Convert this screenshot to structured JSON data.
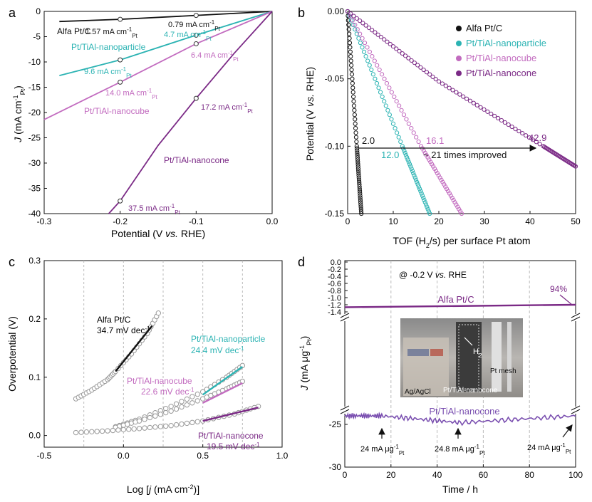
{
  "colors": {
    "pt": "#111111",
    "particle": "#2bb3b3",
    "cube": "#c26bbf",
    "cone": "#7b2a86",
    "cone_d": "#7a4fb0",
    "grid": "#bbbbbb",
    "marker": "#999999"
  },
  "panels": {
    "a": "a",
    "b": "b",
    "c": "c",
    "d": "d"
  },
  "chart_data": [
    {
      "type": "line",
      "panel": "a",
      "xlabel": "Potential (V vs. RHE)",
      "ylabel": "J (mA cm-1Pt)",
      "xlim": [
        -0.3,
        0.0
      ],
      "ylim": [
        -40,
        0
      ],
      "xticks": [
        "-0.3",
        "-0.2",
        "-0.1",
        "0.0"
      ],
      "yticks": [
        "0",
        "-5",
        "-10",
        "-15",
        "-20",
        "-25",
        "-30",
        "-35",
        "-40"
      ],
      "series": [
        {
          "name": "Alfa Pt/C",
          "color": "pt",
          "x": [
            -0.28,
            -0.2,
            -0.1,
            0.0
          ],
          "y": [
            -2.0,
            -1.57,
            -0.79,
            0
          ]
        },
        {
          "name": "Pt/TiAl-nanoparticle",
          "color": "particle",
          "x": [
            -0.28,
            -0.2,
            -0.1,
            0.0
          ],
          "y": [
            -12.7,
            -9.6,
            -4.7,
            0
          ]
        },
        {
          "name": "Pt/TiAl-nanocube",
          "color": "cube",
          "x": [
            -0.3,
            -0.2,
            -0.1,
            0.0
          ],
          "y": [
            -21.4,
            -14.0,
            -6.4,
            0
          ]
        },
        {
          "name": "Pt/TiAl-nanocone",
          "color": "cone",
          "x": [
            -0.215,
            -0.2,
            -0.15,
            -0.1,
            -0.05,
            0.0
          ],
          "y": [
            -40,
            -37.5,
            -26.5,
            -17.2,
            -8.3,
            0
          ]
        }
      ],
      "markers": [
        {
          "x": -0.2,
          "y": -1.57
        },
        {
          "x": -0.1,
          "y": -0.79
        },
        {
          "x": -0.2,
          "y": -9.6
        },
        {
          "x": -0.1,
          "y": -4.7
        },
        {
          "x": -0.2,
          "y": -14.0
        },
        {
          "x": -0.1,
          "y": -6.4
        },
        {
          "x": -0.2,
          "y": -37.5
        },
        {
          "x": -0.1,
          "y": -17.2
        }
      ],
      "labels": {
        "pt": "Alfa Pt/C",
        "particle": "Pt/TiAl-nanoparticle",
        "cube": "Pt/TiAl-nanocube",
        "cone": "Pt/TiAl-nanocone"
      },
      "annotations": [
        "1.57 mA cm-1Pt",
        "0.79 mA cm-1Pt",
        "4.7 mA cm-1Pt",
        "9.6 mA cm-1Pt",
        "6.4 mA cm-1Pt",
        "14.0 mA cm-1Pt",
        "17.2 mA cm-1Pt",
        "37.5 mA cm-1Pt"
      ]
    },
    {
      "type": "scatter",
      "panel": "b",
      "xlabel": "TOF (H2/s) per surface Pt atom",
      "ylabel": "Potential (V vs. RHE)",
      "xlim": [
        0,
        50
      ],
      "ylim": [
        -0.15,
        0.0
      ],
      "xticks": [
        "0",
        "10",
        "20",
        "30",
        "40",
        "50"
      ],
      "yticks": [
        "0.00",
        "-0.05",
        "-0.10",
        "-0.15"
      ],
      "legend_position": "top-right",
      "series": [
        {
          "name": "Alfa Pt/C",
          "color": "pt",
          "x": [
            0,
            2.0,
            3.0
          ],
          "y": [
            0,
            -0.1,
            -0.15
          ]
        },
        {
          "name": "Pt/TiAl-nanoparticle",
          "color": "particle",
          "x": [
            0,
            12.0,
            18.0
          ],
          "y": [
            0,
            -0.1,
            -0.15
          ]
        },
        {
          "name": "Pt/TiAl-nanocube",
          "color": "cube",
          "x": [
            0,
            16.1,
            25.0
          ],
          "y": [
            0,
            -0.1,
            -0.15
          ]
        },
        {
          "name": "Pt/TiAl-nanocone",
          "color": "cone",
          "x": [
            0,
            20,
            42.9,
            50
          ],
          "y": [
            0,
            -0.052,
            -0.1,
            -0.115
          ]
        }
      ],
      "annotations": [
        "2.0",
        "12.0",
        "16.1",
        "42.9",
        "~ 21 times improved"
      ]
    },
    {
      "type": "scatter",
      "panel": "c",
      "xlabel": "Log [j (mA cm-2)]",
      "ylabel": "Overpotential (V)",
      "xlim": [
        -0.5,
        1.0
      ],
      "ylim": [
        -0.02,
        0.3
      ],
      "xticks": [
        "-0.5",
        "0.0",
        "0.5",
        "1.0"
      ],
      "yticks": [
        "0.0",
        "0.1",
        "0.2",
        "0.3"
      ],
      "series": [
        {
          "name": "Alfa Pt/C",
          "color": "pt",
          "slope": "34.7 mV dec-1",
          "x": [
            -0.3,
            -0.2,
            -0.1,
            -0.05,
            0.05,
            0.15,
            0.22
          ],
          "y": [
            0.063,
            0.078,
            0.096,
            0.11,
            0.14,
            0.175,
            0.21
          ]
        },
        {
          "name": "Pt/TiAl-nanoparticle",
          "color": "particle",
          "slope": "24.4 mV dec-1",
          "x": [
            -0.05,
            0.1,
            0.3,
            0.5,
            0.65,
            0.75
          ],
          "y": [
            0.015,
            0.028,
            0.05,
            0.075,
            0.1,
            0.12
          ]
        },
        {
          "name": "Pt/TiAl-nanocube",
          "color": "cube",
          "slope": "22.6 mV dec-1",
          "x": [
            -0.05,
            0.1,
            0.3,
            0.5,
            0.65,
            0.75
          ],
          "y": [
            0.014,
            0.025,
            0.042,
            0.063,
            0.08,
            0.093
          ]
        },
        {
          "name": "Pt/TiAl-nanocone",
          "color": "cone",
          "slope": "19.5 mV dec-1",
          "x": [
            -0.3,
            -0.1,
            0.1,
            0.3,
            0.5,
            0.7,
            0.85
          ],
          "y": [
            0.005,
            0.008,
            0.012,
            0.017,
            0.025,
            0.037,
            0.05
          ]
        }
      ],
      "labels": {
        "pt": "Alfa Pt/C",
        "particle": "Pt/TiAl-nanoparticle",
        "cube": "Pt/TiAl-nanocube",
        "cone": "Pt/TiAl-nanocone"
      },
      "slopes": {
        "pt": "34.7 mV dec-1",
        "particle": "24.4 mV dec-1",
        "cube": "22.6 mV dec-1",
        "cone": "19.5 mV dec-1"
      }
    },
    {
      "type": "line",
      "panel": "d",
      "xlabel": "Time / h",
      "ylabel": "J (mA μg-1Pt)",
      "xlim": [
        0,
        100
      ],
      "ylim": [
        -30,
        0
      ],
      "axis_break": true,
      "xticks": [
        "0",
        "20",
        "40",
        "60",
        "80",
        "100"
      ],
      "yticks_top": [
        "0.0",
        "-0.2",
        "-0.4",
        "-0.6",
        "-0.8",
        "-1.0",
        "-1.2",
        "-1.4"
      ],
      "yticks_bottom": [
        "-25",
        "-30"
      ],
      "condition": "@ -0.2 V vs. RHE",
      "series": [
        {
          "name": "Alfa Pt/C",
          "color": "cone",
          "x": [
            0,
            100
          ],
          "y": [
            -1.27,
            -1.2
          ]
        },
        {
          "name": "Pt/TiAl-nanocone",
          "color": "cone_d",
          "x": [
            0,
            16,
            50,
            100
          ],
          "y": [
            -24.0,
            -24.0,
            -24.8,
            -24.0
          ]
        }
      ],
      "percent": "94%",
      "annotations": [
        "24 mA μg-1Pt",
        "24.8 mA μg-1Pt",
        "24 mA μg-1Pt"
      ],
      "inset_labels": [
        "H2",
        "Pt mesh",
        "Ag/AgCl",
        "Pt/TiAl-nanocone"
      ]
    }
  ]
}
